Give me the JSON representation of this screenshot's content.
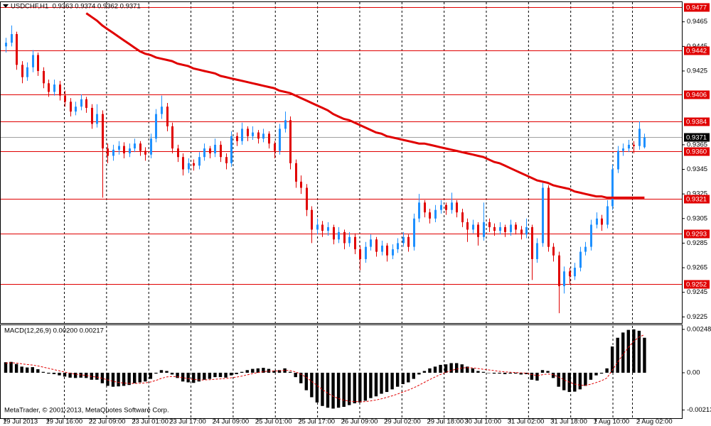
{
  "chart_data": {
    "type": "candlestick",
    "title": "USDCHF,H1  0.9363 0.9374 0.9362 0.9371",
    "footer": "MetaTrader, © 2001-2013, MetaQuotes Software Corp.",
    "up_color": "#1e90ff",
    "down_color": "#e00000",
    "categories": [
      "19 Jul 2013",
      null,
      null,
      null,
      null,
      null,
      null,
      null,
      "19 Jul 16:00",
      null,
      null,
      null,
      null,
      null,
      null,
      null,
      "22 Jul 09:00",
      null,
      null,
      null,
      null,
      null,
      null,
      null,
      "23 Jul 01:00",
      null,
      null,
      null,
      null,
      null,
      null,
      "23 Jul 17:00",
      null,
      null,
      null,
      null,
      null,
      null,
      null,
      "24 Jul 09:00",
      null,
      null,
      null,
      null,
      null,
      null,
      null,
      "25 Jul 01:00",
      null,
      null,
      null,
      null,
      null,
      null,
      null,
      "25 Jul 17:00",
      null,
      null,
      null,
      null,
      null,
      null,
      null,
      "26 Jul 09:00",
      null,
      null,
      null,
      null,
      null,
      null,
      null,
      "29 Jul 02:00",
      null,
      null,
      null,
      null,
      null,
      null,
      null,
      "29 Jul 18:00",
      null,
      null,
      null,
      null,
      null,
      null,
      "30 Jul 10:00",
      null,
      null,
      null,
      null,
      null,
      null,
      null,
      "31 Jul 02:00",
      null,
      null,
      null,
      null,
      null,
      null,
      null,
      "31 Jul 18:00",
      null,
      null,
      null,
      null,
      null,
      null,
      null,
      "1 Aug 10:00",
      null,
      null,
      null,
      null,
      null,
      null,
      null,
      "2 Aug 02:00",
      null
    ],
    "open": [
      0.9445,
      0.9448,
      0.9455,
      0.943,
      0.942,
      0.9428,
      0.9438,
      0.9425,
      0.9415,
      0.9408,
      0.9414,
      0.9405,
      0.94,
      0.9392,
      0.9396,
      0.9402,
      0.9395,
      0.9382,
      0.939,
      0.9362,
      0.9356,
      0.9361,
      0.9364,
      0.9358,
      0.9362,
      0.9366,
      0.936,
      0.9357,
      0.937,
      0.939,
      0.9396,
      0.938,
      0.9362,
      0.9355,
      0.9345,
      0.935,
      0.9348,
      0.9355,
      0.9362,
      0.9358,
      0.9365,
      0.9355,
      0.935,
      0.9372,
      0.9368,
      0.9378,
      0.9372,
      0.9375,
      0.937,
      0.9374,
      0.9366,
      0.936,
      0.9378,
      0.9385,
      0.935,
      0.9335,
      0.933,
      0.9312,
      0.9296,
      0.93,
      0.9295,
      0.9298,
      0.9288,
      0.9294,
      0.9285,
      0.929,
      0.928,
      0.9272,
      0.9282,
      0.9288,
      0.9278,
      0.9283,
      0.9275,
      0.928,
      0.9285,
      0.929,
      0.9282,
      0.9305,
      0.9318,
      0.931,
      0.9305,
      0.9312,
      0.9316,
      0.9312,
      0.9318,
      0.931,
      0.9302,
      0.9296,
      0.93,
      0.929,
      0.9302,
      0.9298,
      0.9295,
      0.9298,
      0.9294,
      0.93,
      0.9296,
      0.9292,
      0.9298,
      0.9272,
      0.9285,
      0.933,
      0.9282,
      0.9275,
      0.925,
      0.9262,
      0.9258,
      0.9265,
      0.9278,
      0.9282,
      0.93,
      0.9305,
      0.93,
      0.9315,
      0.9345,
      0.936,
      0.9362,
      0.9365,
      0.9364,
      0.9363
    ],
    "high": [
      0.9452,
      0.9462,
      0.9457,
      0.9433,
      0.9432,
      0.9442,
      0.944,
      0.9428,
      0.9418,
      0.9418,
      0.9417,
      0.9409,
      0.9403,
      0.94,
      0.9406,
      0.9404,
      0.9398,
      0.9398,
      0.9393,
      0.9366,
      0.9365,
      0.9368,
      0.9367,
      0.9366,
      0.937,
      0.9368,
      0.9363,
      0.9374,
      0.9394,
      0.9405,
      0.9399,
      0.9383,
      0.9365,
      0.9358,
      0.9354,
      0.9353,
      0.9359,
      0.9366,
      0.9364,
      0.937,
      0.9368,
      0.9358,
      0.9376,
      0.9375,
      0.9383,
      0.938,
      0.938,
      0.9377,
      0.9378,
      0.9376,
      0.9368,
      0.9382,
      0.9392,
      0.9388,
      0.9353,
      0.934,
      0.9333,
      0.9315,
      0.9305,
      0.9303,
      0.9302,
      0.93,
      0.9298,
      0.9296,
      0.9294,
      0.9293,
      0.9283,
      0.9286,
      0.9292,
      0.929,
      0.9287,
      0.9285,
      0.9284,
      0.9289,
      0.9294,
      0.9292,
      0.9309,
      0.9325,
      0.932,
      0.9313,
      0.9316,
      0.932,
      0.9318,
      0.9326,
      0.932,
      0.9313,
      0.9305,
      0.9304,
      0.9302,
      0.9318,
      0.9305,
      0.9301,
      0.9302,
      0.93,
      0.9304,
      0.9302,
      0.9299,
      0.9305,
      0.93,
      0.9289,
      0.9334,
      0.9332,
      0.9285,
      0.9278,
      0.9266,
      0.9265,
      0.9269,
      0.9282,
      0.9286,
      0.9304,
      0.931,
      0.9308,
      0.932,
      0.9349,
      0.9364,
      0.9366,
      0.9369,
      0.9368,
      0.9384,
      0.9374
    ],
    "low": [
      0.944,
      0.9445,
      0.9426,
      0.9415,
      0.9417,
      0.9424,
      0.9421,
      0.9411,
      0.9404,
      0.9405,
      0.9401,
      0.9396,
      0.9388,
      0.9389,
      0.9393,
      0.9391,
      0.9378,
      0.9379,
      0.9322,
      0.935,
      0.9352,
      0.9357,
      0.9354,
      0.9355,
      0.9359,
      0.9356,
      0.9352,
      0.9354,
      0.9367,
      0.9386,
      0.9376,
      0.9358,
      0.9351,
      0.934,
      0.9342,
      0.9344,
      0.9345,
      0.9352,
      0.9354,
      0.9355,
      0.9351,
      0.9345,
      0.9347,
      0.9364,
      0.9365,
      0.9368,
      0.9369,
      0.9366,
      0.9367,
      0.9362,
      0.9354,
      0.9357,
      0.9375,
      0.9345,
      0.933,
      0.9325,
      0.9307,
      0.9285,
      0.9292,
      0.929,
      0.9291,
      0.9284,
      0.9285,
      0.928,
      0.9282,
      0.9276,
      0.9263,
      0.9269,
      0.9279,
      0.9274,
      0.9275,
      0.927,
      0.9272,
      0.9277,
      0.9282,
      0.9278,
      0.9279,
      0.9302,
      0.9306,
      0.9301,
      0.9302,
      0.9309,
      0.9308,
      0.9309,
      0.9306,
      0.9298,
      0.9286,
      0.9293,
      0.9283,
      0.9287,
      0.9294,
      0.9291,
      0.9292,
      0.929,
      0.9291,
      0.9292,
      0.9288,
      0.9289,
      0.9255,
      0.9269,
      0.9282,
      0.9278,
      0.927,
      0.9228,
      0.9244,
      0.9252,
      0.9255,
      0.9262,
      0.9275,
      0.9279,
      0.9297,
      0.9295,
      0.9297,
      0.9312,
      0.9342,
      0.9356,
      0.9359,
      0.9358,
      0.9361,
      0.9362
    ],
    "close": [
      0.9448,
      0.9455,
      0.943,
      0.942,
      0.9428,
      0.9438,
      0.9425,
      0.9415,
      0.9408,
      0.9414,
      0.9405,
      0.94,
      0.9392,
      0.9396,
      0.9402,
      0.9395,
      0.9382,
      0.939,
      0.9362,
      0.9356,
      0.9361,
      0.9364,
      0.9358,
      0.9362,
      0.9366,
      0.936,
      0.9357,
      0.937,
      0.939,
      0.9396,
      0.938,
      0.9362,
      0.9355,
      0.9345,
      0.935,
      0.9348,
      0.9355,
      0.9362,
      0.9358,
      0.9365,
      0.9355,
      0.935,
      0.9372,
      0.9368,
      0.9378,
      0.9372,
      0.9375,
      0.937,
      0.9374,
      0.9366,
      0.936,
      0.9378,
      0.9385,
      0.935,
      0.9335,
      0.933,
      0.9312,
      0.9296,
      0.93,
      0.9295,
      0.9298,
      0.9288,
      0.9294,
      0.9285,
      0.929,
      0.928,
      0.9272,
      0.9282,
      0.9288,
      0.9278,
      0.9283,
      0.9275,
      0.928,
      0.9285,
      0.929,
      0.9282,
      0.9305,
      0.9318,
      0.931,
      0.9305,
      0.9312,
      0.9316,
      0.9312,
      0.9318,
      0.931,
      0.9302,
      0.9296,
      0.93,
      0.929,
      0.9302,
      0.9298,
      0.9295,
      0.9298,
      0.9294,
      0.93,
      0.9296,
      0.9292,
      0.9298,
      0.9272,
      0.9285,
      0.933,
      0.9282,
      0.9275,
      0.925,
      0.9262,
      0.9258,
      0.9265,
      0.9278,
      0.9282,
      0.93,
      0.9305,
      0.93,
      0.9315,
      0.9345,
      0.936,
      0.9362,
      0.9365,
      0.9364,
      0.9378,
      0.9371
    ],
    "ylim": [
      0.922,
      0.9481
    ],
    "yticks": [
      0.9465,
      0.9445,
      0.9425,
      0.9365,
      0.9345,
      0.9325,
      0.9305,
      0.9285,
      0.9265,
      0.9245,
      0.9225
    ],
    "ma": {
      "color": "#e00000",
      "values": [
        null,
        null,
        null,
        null,
        null,
        null,
        null,
        null,
        null,
        null,
        null,
        null,
        null,
        null,
        null,
        0.9472,
        0.9469,
        0.9466,
        0.9462,
        0.9459,
        0.9456,
        0.9453,
        0.945,
        0.9447,
        0.9444,
        0.9441,
        0.9439,
        0.9438,
        0.9436,
        0.9435,
        0.9434,
        0.9433,
        0.9431,
        0.943,
        0.9429,
        0.9427,
        0.9426,
        0.9425,
        0.9424,
        0.9423,
        0.9421,
        0.942,
        0.9419,
        0.9418,
        0.9417,
        0.9416,
        0.9415,
        0.9414,
        0.9413,
        0.9412,
        0.9411,
        0.9409,
        0.9408,
        0.9407,
        0.9405,
        0.9403,
        0.9401,
        0.9399,
        0.9397,
        0.9395,
        0.9393,
        0.939,
        0.9388,
        0.9386,
        0.9385,
        0.9383,
        0.9381,
        0.9379,
        0.9377,
        0.9375,
        0.9374,
        0.9372,
        0.9371,
        0.937,
        0.9369,
        0.9368,
        0.9367,
        0.9366,
        0.9366,
        0.9365,
        0.9364,
        0.9363,
        0.9362,
        0.9361,
        0.936,
        0.9359,
        0.9358,
        0.9357,
        0.9356,
        0.9355,
        0.9353,
        0.9351,
        0.935,
        0.9348,
        0.9346,
        0.9344,
        0.9342,
        0.934,
        0.9338,
        0.9336,
        0.9335,
        0.9334,
        0.9332,
        0.9331,
        0.933,
        0.9329,
        0.9327,
        0.9326,
        0.9325,
        0.9324,
        0.9323,
        0.9323,
        0.9322,
        0.9322,
        0.9322,
        0.9322,
        0.9322,
        0.9322,
        0.9322,
        0.9322
      ]
    },
    "levels": {
      "color": "#e00000",
      "values": [
        0.9477,
        0.9442,
        0.9406,
        0.9384,
        {
          "value": 0.936,
          "label": "0.9360"
        },
        0.9321,
        0.9293,
        0.9252
      ]
    },
    "current": {
      "value": 0.9371,
      "color": "#000000"
    },
    "macd": {
      "title": "MACD(12,26,9) 0.00200 0.00217",
      "ylim": [
        -0.00264,
        0.00272
      ],
      "yticks": [
        0.00248,
        {
          "value": 0,
          "label": "0.00"
        },
        -0.00213
      ],
      "histogram": {
        "color": "#000000",
        "values": [
          0.0006,
          0.00062,
          0.0005,
          0.00035,
          0.0003,
          0.00032,
          0.0002,
          5e-05,
          -5e-05,
          -8e-05,
          -0.00015,
          -0.00022,
          -0.00028,
          -0.0003,
          -0.00028,
          -0.0003,
          -0.0004,
          -0.0004,
          -0.0006,
          -0.00075,
          -0.0008,
          -0.00078,
          -0.00075,
          -0.0007,
          -0.0006,
          -0.00055,
          -0.0005,
          -0.00035,
          -5e-05,
          0.00015,
          0.0001,
          -0.0001,
          -0.0003,
          -0.0005,
          -0.00055,
          -0.00058,
          -0.0005,
          -0.0004,
          -0.00035,
          -0.00025,
          -0.00025,
          -0.00028,
          -0.00015,
          -8e-05,
          5e-05,
          0.00015,
          0.00022,
          0.00025,
          0.00028,
          0.00022,
          0.00012,
          0.00015,
          0.00025,
          5e-05,
          -0.00025,
          -0.0006,
          -0.001,
          -0.0014,
          -0.0017,
          -0.0019,
          -0.002,
          -0.00205,
          -0.002,
          -0.00195,
          -0.00185,
          -0.00175,
          -0.0017,
          -0.0016,
          -0.00145,
          -0.00135,
          -0.0012,
          -0.0011,
          -0.00095,
          -0.0008,
          -0.00065,
          -0.00055,
          -0.00035,
          -0.0001,
          0.0001,
          0.00025,
          0.00035,
          0.00045,
          0.00048,
          0.00055,
          0.00055,
          0.00048,
          0.00035,
          0.00025,
          0.0001,
          5e-05,
          0.0,
          -5e-05,
          -5e-05,
          -8e-05,
          -5e-05,
          -5e-05,
          -0.0001,
          -8e-05,
          -0.0004,
          -0.00045,
          0.00015,
          0.0001,
          -0.0003,
          -0.0008,
          -0.001,
          -0.0011,
          -0.00108,
          -0.00095,
          -0.00075,
          -0.0004,
          -0.00015,
          -5e-05,
          0.00025,
          0.0015,
          0.002,
          0.0023,
          0.00245,
          0.00248,
          0.0024,
          0.002
        ]
      },
      "signal": {
        "color": "#e00000",
        "values": [
          0.00055,
          0.00057,
          0.00055,
          0.00051,
          0.00047,
          0.00044,
          0.00039,
          0.00032,
          0.00025,
          0.00018,
          0.00011,
          4e-05,
          -3e-05,
          -8e-05,
          -0.00012,
          -0.00016,
          -0.00021,
          -0.00025,
          -0.00032,
          -0.00041,
          -0.00049,
          -0.00055,
          -0.00059,
          -0.00061,
          -0.00061,
          -0.0006,
          -0.00058,
          -0.00053,
          -0.00044,
          -0.00032,
          -0.00024,
          -0.00021,
          -0.00023,
          -0.00028,
          -0.00034,
          -0.00038,
          -0.00041,
          -0.00041,
          -0.0004,
          -0.00037,
          -0.00035,
          -0.00033,
          -0.00029,
          -0.00025,
          -0.00019,
          -0.00012,
          -5e-05,
          1e-05,
          6e-05,
          9e-05,
          0.0001,
          0.00011,
          0.00014,
          0.00012,
          5e-05,
          -8e-05,
          -0.00026,
          -0.00049,
          -0.00073,
          -0.00096,
          -0.00117,
          -0.00135,
          -0.00148,
          -0.00157,
          -0.00163,
          -0.00165,
          -0.00166,
          -0.00165,
          -0.00161,
          -0.00156,
          -0.00149,
          -0.00141,
          -0.00132,
          -0.00122,
          -0.0011,
          -0.00099,
          -0.00086,
          -0.00071,
          -0.00055,
          -0.00039,
          -0.00024,
          -0.0001,
          2e-05,
          0.00013,
          0.00021,
          0.00027,
          0.00029,
          0.00028,
          0.00024,
          0.0002,
          0.00016,
          0.00012,
          8e-05,
          5e-05,
          3e-05,
          1e-05,
          -1e-05,
          -2e-05,
          -0.0001,
          -0.00017,
          -0.00011,
          -7e-05,
          -0.00011,
          -0.00025,
          -0.0004,
          -0.00054,
          -0.00065,
          -0.00071,
          -0.00072,
          -0.00066,
          -0.00056,
          -0.00046,
          -0.0003,
          0.00015,
          0.0006,
          0.00105,
          0.00145,
          0.0018,
          0.00205,
          0.00217
        ]
      }
    }
  }
}
